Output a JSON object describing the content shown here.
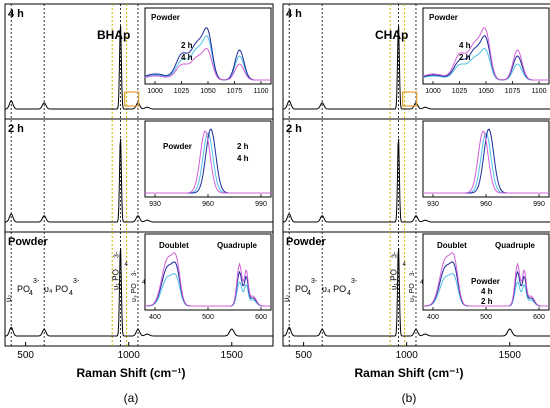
{
  "chart_data": [
    {
      "type": "line",
      "figure_label": "(a)",
      "sample": "BHAp",
      "xlabel": "Raman Shift (cm⁻¹)",
      "xlim": [
        400,
        1700
      ],
      "xticks": [
        500,
        1000,
        1500
      ],
      "reference_lines": [
        430,
        590,
        960,
        1045
      ],
      "highlight_lines": [
        920,
        990
      ],
      "panels": [
        {
          "label": "4 h"
        },
        {
          "label": "2 h"
        },
        {
          "label": "Powder"
        }
      ],
      "peak_labels": [
        "υ₂",
        "PO",
        "4",
        "3-",
        "υ₄ PO",
        "4",
        "3-",
        "υ₁ PO",
        "4",
        "3-",
        "υ₃ PO",
        "4",
        "3-"
      ],
      "insets": [
        {
          "ticks": [
            "1000",
            "1025",
            "1050",
            "1075",
            "1100"
          ],
          "legend": [
            "Powder",
            "2 h",
            "4 h"
          ]
        },
        {
          "ticks": [
            "930",
            "960",
            "990"
          ],
          "legend": [
            "Powder",
            "2 h",
            "4 h"
          ]
        },
        {
          "ticks": [
            "400",
            "500",
            "600"
          ],
          "annotations": [
            "Doublet",
            "Quadruple"
          ]
        }
      ]
    },
    {
      "type": "line",
      "figure_label": "(b)",
      "sample": "CHAp",
      "xlabel": "Raman Shift (cm⁻¹)",
      "xlim": [
        400,
        1700
      ],
      "xticks": [
        500,
        1000,
        1500
      ],
      "reference_lines": [
        430,
        590,
        960,
        1045
      ],
      "highlight_lines": [
        920,
        990
      ],
      "panels": [
        {
          "label": "4 h"
        },
        {
          "label": "2 h"
        },
        {
          "label": "Powder"
        }
      ],
      "peak_labels": [
        "υ₂",
        "PO",
        "4",
        "3-",
        "υ₄ PO",
        "4",
        "3-",
        "υ₁ PO",
        "4",
        "3-",
        "υ₃ PO",
        "4",
        "3-"
      ],
      "insets": [
        {
          "ticks": [
            "1000",
            "1025",
            "1050",
            "1075",
            "1100"
          ],
          "legend": [
            "Powder",
            "4 h",
            "2 h"
          ]
        },
        {
          "ticks": [
            "930",
            "960",
            "990"
          ]
        },
        {
          "ticks": [
            "400",
            "500",
            "600"
          ],
          "annotations": [
            "Doublet",
            "Quadruple"
          ],
          "legend": [
            "Powder",
            "4 h",
            "2 h"
          ]
        }
      ]
    }
  ],
  "colors": {
    "powder": "#d060d8",
    "h2": "#1a2a9a",
    "h4": "#50c0e8",
    "main": "#000000",
    "highlight": "#c8b400",
    "box": "#e0a030"
  }
}
